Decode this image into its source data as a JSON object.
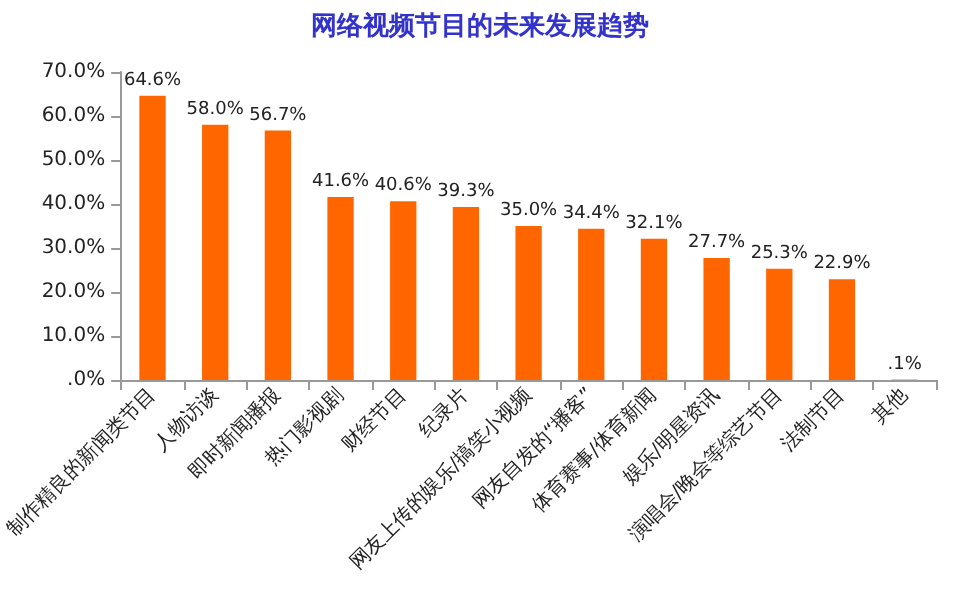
{
  "chart_data": {
    "type": "bar",
    "title": "网络视频节目的未来发展趋势",
    "categories": [
      "制作精良的新闻类节目",
      "人物访谈",
      "即时新闻播报",
      "热门影视剧",
      "财经节目",
      "纪录片",
      "网友上传的娱乐/搞笑小视频",
      "网友自发的“播客”",
      "体育赛事/体育新闻",
      "娱乐/明星资讯",
      "演唱会/晚会等综艺节目",
      "法制节目",
      "其他"
    ],
    "values": [
      64.6,
      58.0,
      56.7,
      41.6,
      40.6,
      39.3,
      35.0,
      34.4,
      32.1,
      27.7,
      25.3,
      22.9,
      0.1
    ],
    "value_labels": [
      "64.6%",
      "58.0%",
      "56.7%",
      "41.6%",
      "40.6%",
      "39.3%",
      "35.0%",
      "34.4%",
      "32.1%",
      "27.7%",
      "25.3%",
      "22.9%",
      ".1%"
    ],
    "color": "#ff6600",
    "ylim": [
      0,
      70
    ],
    "yticks": [
      {
        "value": 0,
        "label": ".0%"
      },
      {
        "value": 10,
        "label": "10.0%"
      },
      {
        "value": 20,
        "label": "20.0%"
      },
      {
        "value": 30,
        "label": "30.0%"
      },
      {
        "value": 40,
        "label": "40.0%"
      },
      {
        "value": 50,
        "label": "50.0%"
      },
      {
        "value": 60,
        "label": "60.0%"
      },
      {
        "value": 70,
        "label": "70.0%"
      }
    ],
    "grid": false
  }
}
